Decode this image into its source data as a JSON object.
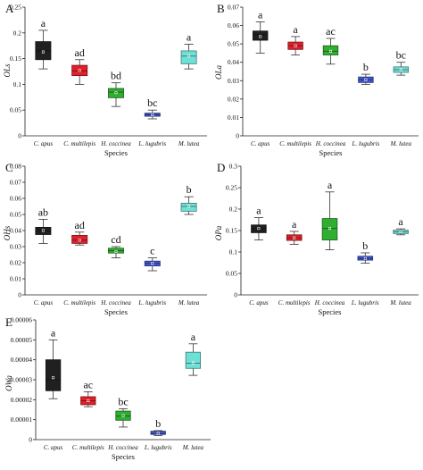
{
  "chart_data": [
    {
      "panel": "A",
      "type": "boxplot",
      "ylabel": "OLs",
      "xlabel": "Species",
      "categories": [
        "C. apus",
        "C. multilepis",
        "H. coccinea",
        "L. lugubris",
        "M. lutea"
      ],
      "yticks": [
        "0",
        "0.05",
        "0.1",
        "0.15",
        "0.2",
        "0.25"
      ],
      "ylim": [
        0,
        0.25
      ],
      "boxes": [
        {
          "min": 0.13,
          "q1": 0.148,
          "median": 0.165,
          "q3": 0.183,
          "max": 0.205,
          "mean": 0.163
        },
        {
          "min": 0.1,
          "q1": 0.117,
          "median": 0.126,
          "q3": 0.137,
          "max": 0.148,
          "mean": 0.127
        },
        {
          "min": 0.057,
          "q1": 0.074,
          "median": 0.085,
          "q3": 0.092,
          "max": 0.103,
          "mean": 0.084
        },
        {
          "min": 0.033,
          "q1": 0.038,
          "median": 0.041,
          "q3": 0.044,
          "max": 0.05,
          "mean": 0.041
        },
        {
          "min": 0.13,
          "q1": 0.14,
          "median": 0.155,
          "q3": 0.165,
          "max": 0.178,
          "mean": 0.155
        }
      ],
      "colors": [
        "#202020",
        "#e0202a",
        "#2fae2f",
        "#4058d0",
        "#6fe0d6"
      ],
      "letters": [
        "a",
        "ad",
        "bd",
        "bc",
        "a"
      ]
    },
    {
      "panel": "B",
      "type": "boxplot",
      "ylabel": "OLa",
      "xlabel": "Species",
      "categories": [
        "C. apus",
        "C. multilepis",
        "H. coccinea",
        "L. lugubris",
        "M. lutea"
      ],
      "yticks": [
        "0",
        "0.01",
        "0.02",
        "0.03",
        "0.04",
        "0.05",
        "0.06",
        "0.07"
      ],
      "ylim": [
        0,
        0.07
      ],
      "boxes": [
        {
          "min": 0.045,
          "q1": 0.052,
          "median": 0.055,
          "q3": 0.057,
          "max": 0.062,
          "mean": 0.054
        },
        {
          "min": 0.044,
          "q1": 0.047,
          "median": 0.049,
          "q3": 0.051,
          "max": 0.054,
          "mean": 0.049
        },
        {
          "min": 0.039,
          "q1": 0.044,
          "median": 0.046,
          "q3": 0.049,
          "max": 0.053,
          "mean": 0.046
        },
        {
          "min": 0.028,
          "q1": 0.029,
          "median": 0.0305,
          "q3": 0.032,
          "max": 0.0335,
          "mean": 0.0305
        },
        {
          "min": 0.033,
          "q1": 0.0345,
          "median": 0.036,
          "q3": 0.0375,
          "max": 0.04,
          "mean": 0.036
        }
      ],
      "colors": [
        "#202020",
        "#e0202a",
        "#2fae2f",
        "#4058d0",
        "#6fe0d6"
      ],
      "letters": [
        "a",
        "a",
        "ac",
        "b",
        "bc"
      ]
    },
    {
      "panel": "C",
      "type": "boxplot",
      "ylabel": "OHs",
      "xlabel": "Species",
      "categories": [
        "C. apus",
        "C. multilepis",
        "H. coccinea",
        "L. lugubris",
        "M. lutea"
      ],
      "yticks": [
        "0",
        "0.01",
        "0.02",
        "0.03",
        "0.04",
        "0.05",
        "0.06",
        "0.07",
        "0.08"
      ],
      "ylim": [
        0,
        0.08
      ],
      "boxes": [
        {
          "min": 0.032,
          "q1": 0.0375,
          "median": 0.04,
          "q3": 0.042,
          "max": 0.047,
          "mean": 0.04
        },
        {
          "min": 0.031,
          "q1": 0.032,
          "median": 0.034,
          "q3": 0.037,
          "max": 0.039,
          "mean": 0.034
        },
        {
          "min": 0.023,
          "q1": 0.026,
          "median": 0.0275,
          "q3": 0.029,
          "max": 0.03,
          "mean": 0.027
        },
        {
          "min": 0.015,
          "q1": 0.018,
          "median": 0.0195,
          "q3": 0.021,
          "max": 0.023,
          "mean": 0.0195
        },
        {
          "min": 0.05,
          "q1": 0.052,
          "median": 0.055,
          "q3": 0.057,
          "max": 0.061,
          "mean": 0.055
        }
      ],
      "colors": [
        "#202020",
        "#e0202a",
        "#2fae2f",
        "#4058d0",
        "#6fe0d6"
      ],
      "letters": [
        "ab",
        "ad",
        "cd",
        "c",
        "b"
      ]
    },
    {
      "panel": "D",
      "type": "boxplot",
      "ylabel": "OPa",
      "xlabel": "Species",
      "categories": [
        "C. apus",
        "C. multilepis",
        "H. coccinea",
        "L. lugubris",
        "M. lutea"
      ],
      "yticks": [
        "0",
        "0.05",
        "0.1",
        "0.15",
        "0.2",
        "0.25",
        "0.3"
      ],
      "ylim": [
        0,
        0.3
      ],
      "boxes": [
        {
          "min": 0.128,
          "q1": 0.145,
          "median": 0.155,
          "q3": 0.163,
          "max": 0.18,
          "mean": 0.155
        },
        {
          "min": 0.118,
          "q1": 0.127,
          "median": 0.133,
          "q3": 0.14,
          "max": 0.148,
          "mean": 0.133
        },
        {
          "min": 0.105,
          "q1": 0.128,
          "median": 0.155,
          "q3": 0.178,
          "max": 0.24,
          "mean": 0.155
        },
        {
          "min": 0.074,
          "q1": 0.081,
          "median": 0.085,
          "q3": 0.09,
          "max": 0.098,
          "mean": 0.085
        },
        {
          "min": 0.14,
          "q1": 0.143,
          "median": 0.147,
          "q3": 0.151,
          "max": 0.154,
          "mean": 0.147
        }
      ],
      "colors": [
        "#202020",
        "#e0202a",
        "#2fae2f",
        "#4058d0",
        "#6fe0d6"
      ],
      "letters": [
        "a",
        "a",
        "a",
        "b",
        "a"
      ]
    },
    {
      "panel": "E",
      "type": "boxplot",
      "ylabel": "OWa",
      "xlabel": "Species",
      "categories": [
        "C. apus",
        "C. multilepis",
        "H. coccinea",
        "L. lugubris",
        "M. lutea"
      ],
      "yticks": [
        "0",
        "0.00001",
        "0.00002",
        "0.00003",
        "0.00004",
        "0.00005",
        "0.00006"
      ],
      "ylim": [
        0,
        6e-05
      ],
      "boxes": [
        {
          "min": 2.05e-05,
          "q1": 2.45e-05,
          "median": 3e-05,
          "q3": 4e-05,
          "max": 5e-05,
          "mean": 3.1e-05
        },
        {
          "min": 1.65e-05,
          "q1": 1.75e-05,
          "median": 1.95e-05,
          "q3": 2.15e-05,
          "max": 2.4e-05,
          "mean": 1.95e-05
        },
        {
          "min": 6.3e-06,
          "q1": 9.7e-06,
          "median": 1.18e-05,
          "q3": 1.43e-05,
          "max": 1.55e-05,
          "mean": 1.2e-05
        },
        {
          "min": 2e-06,
          "q1": 2.6e-06,
          "median": 3e-06,
          "q3": 4.2e-06,
          "max": 4.5e-06,
          "mean": 3.2e-06
        },
        {
          "min": 3.22e-05,
          "q1": 3.57e-05,
          "median": 3.83e-05,
          "q3": 4.38e-05,
          "max": 4.8e-05,
          "mean": 3.85e-05
        }
      ],
      "colors": [
        "#202020",
        "#e0202a",
        "#2fae2f",
        "#4058d0",
        "#6fe0d6"
      ],
      "letters": [
        "a",
        "ac",
        "bc",
        "b",
        "a"
      ]
    }
  ]
}
